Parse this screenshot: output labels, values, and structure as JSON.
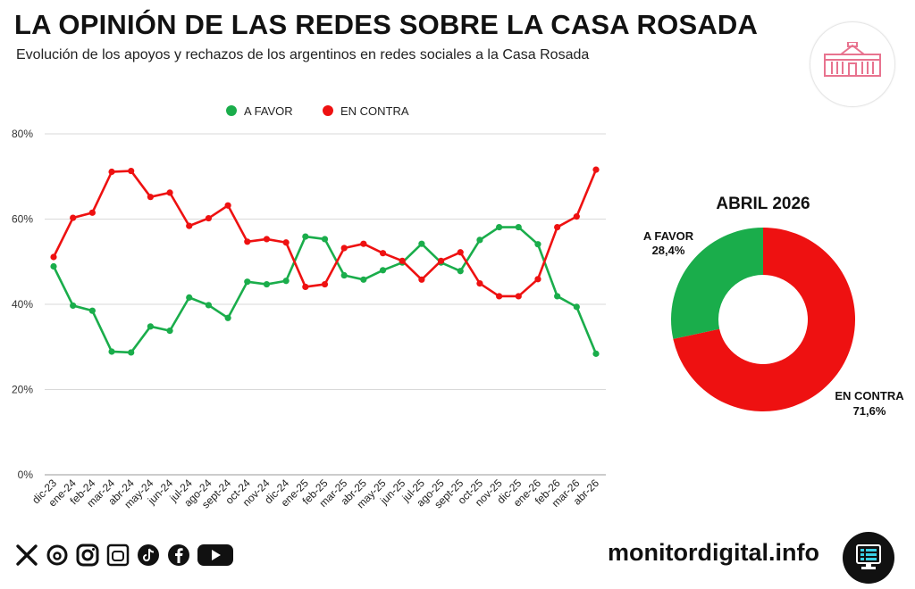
{
  "header": {
    "title": "LA OPINIÓN DE LAS REDES SOBRE LA CASA ROSADA",
    "subtitle": "Evolución de los apoyos y rechazos de los argentinos en redes sociales a la Casa Rosada"
  },
  "colors": {
    "favor": "#1aad4b",
    "contra": "#ee1111",
    "grid": "#d9d9d9",
    "logo": "#e8738f"
  },
  "chart_data": [
    {
      "type": "line",
      "categories": [
        "dic-23",
        "ene-24",
        "feb-24",
        "mar-24",
        "abr-24",
        "may-24",
        "jun-24",
        "jul-24",
        "ago-24",
        "sept-24",
        "oct-24",
        "nov-24",
        "dic-24",
        "ene-25",
        "feb-25",
        "mar-25",
        "abr-25",
        "may-25",
        "jun-25",
        "jul-25",
        "ago-25",
        "sept-25",
        "oct-25",
        "nov-25",
        "dic-25",
        "ene-26",
        "feb-26",
        "mar-26",
        "abr-26"
      ],
      "series": [
        {
          "name": "A FAVOR",
          "color": "#1aad4b",
          "values": [
            48.9,
            39.7,
            38.5,
            28.9,
            28.7,
            34.8,
            33.8,
            41.6,
            39.8,
            36.8,
            45.3,
            44.7,
            45.5,
            55.9,
            55.3,
            46.8,
            45.8,
            48.0,
            49.8,
            54.2,
            49.8,
            47.8,
            55.1,
            58.1,
            58.1,
            54.1,
            41.9,
            39.4,
            28.4
          ]
        },
        {
          "name": "EN CONTRA",
          "color": "#ee1111",
          "values": [
            51.1,
            60.3,
            61.5,
            71.1,
            71.3,
            65.2,
            66.2,
            58.4,
            60.2,
            63.2,
            54.7,
            55.3,
            54.5,
            44.1,
            44.7,
            53.2,
            54.2,
            52.0,
            50.2,
            45.8,
            50.2,
            52.2,
            44.9,
            41.9,
            41.9,
            45.9,
            58.1,
            60.6,
            71.6
          ]
        }
      ],
      "yticks": [
        "0%",
        "20%",
        "40%",
        "60%",
        "80%"
      ],
      "ylim": [
        0,
        80
      ],
      "legend": "top-center",
      "grid": true
    },
    {
      "type": "pie",
      "title": "ABRIL 2026",
      "labels": [
        "A FAVOR",
        "EN CONTRA"
      ],
      "values": [
        28.4,
        71.6
      ],
      "value_labels": [
        "28,4%",
        "71,6%"
      ],
      "colors": [
        "#1aad4b",
        "#ee1111"
      ],
      "donut": true
    }
  ],
  "footer": {
    "site": "monitordigital.info",
    "social_icons": [
      "x-icon",
      "threads-icon",
      "instagram-icon",
      "kick-icon",
      "tiktok-icon",
      "facebook-icon",
      "youtube-icon"
    ]
  }
}
